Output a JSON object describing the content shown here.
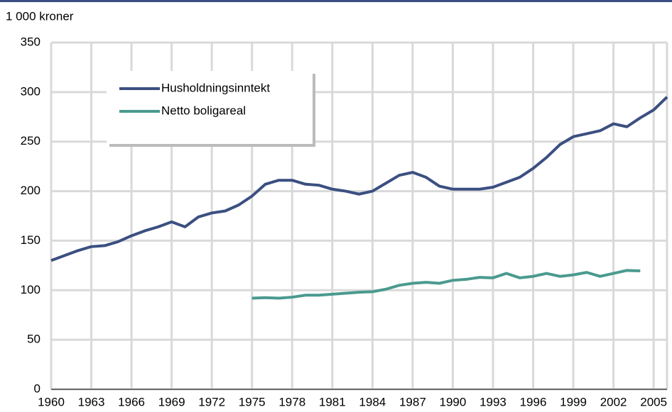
{
  "chart_data": {
    "type": "line",
    "y_axis_label": "1 000 kroner",
    "x": [
      1960,
      1961,
      1962,
      1963,
      1964,
      1965,
      1966,
      1967,
      1968,
      1969,
      1970,
      1971,
      1972,
      1973,
      1974,
      1975,
      1976,
      1977,
      1978,
      1979,
      1980,
      1981,
      1982,
      1983,
      1984,
      1985,
      1986,
      1987,
      1988,
      1989,
      1990,
      1991,
      1992,
      1993,
      1994,
      1995,
      1996,
      1997,
      1998,
      1999,
      2000,
      2001,
      2002,
      2003,
      2004,
      2005,
      2006
    ],
    "series": [
      {
        "name": "Husholdningsinntekt",
        "color": "#3b4f81",
        "values": [
          130,
          135,
          140,
          144,
          145,
          149,
          155,
          160,
          164,
          169,
          164,
          174,
          178,
          180,
          186,
          195,
          207,
          211,
          211,
          207,
          206,
          202,
          200,
          197,
          200,
          208,
          216,
          219,
          214,
          205,
          202,
          202,
          202,
          204,
          209,
          214,
          223,
          234,
          247,
          255,
          258,
          261,
          268,
          265,
          274,
          282,
          295
        ]
      },
      {
        "name": "Netto boligareal",
        "color": "#4a9a8f",
        "values": [
          null,
          null,
          null,
          null,
          null,
          null,
          null,
          null,
          null,
          null,
          null,
          null,
          null,
          null,
          null,
          92,
          92.5,
          92,
          93,
          95,
          95,
          96,
          97,
          98,
          98.5,
          101,
          105,
          107,
          108,
          107,
          110,
          111,
          113,
          112.5,
          117,
          112.5,
          114,
          117,
          114,
          115.5,
          118,
          114,
          117,
          120,
          119.5,
          null,
          null
        ]
      }
    ],
    "xlim": [
      1960,
      2006
    ],
    "xticks": [
      1960,
      1963,
      1966,
      1969,
      1972,
      1975,
      1978,
      1981,
      1984,
      1987,
      1990,
      1993,
      1996,
      1999,
      2002,
      2005
    ],
    "ylim": [
      0,
      350
    ],
    "yticks": [
      0,
      50,
      100,
      150,
      200,
      250,
      300,
      350
    ],
    "grid": true,
    "legend": "upper left"
  }
}
